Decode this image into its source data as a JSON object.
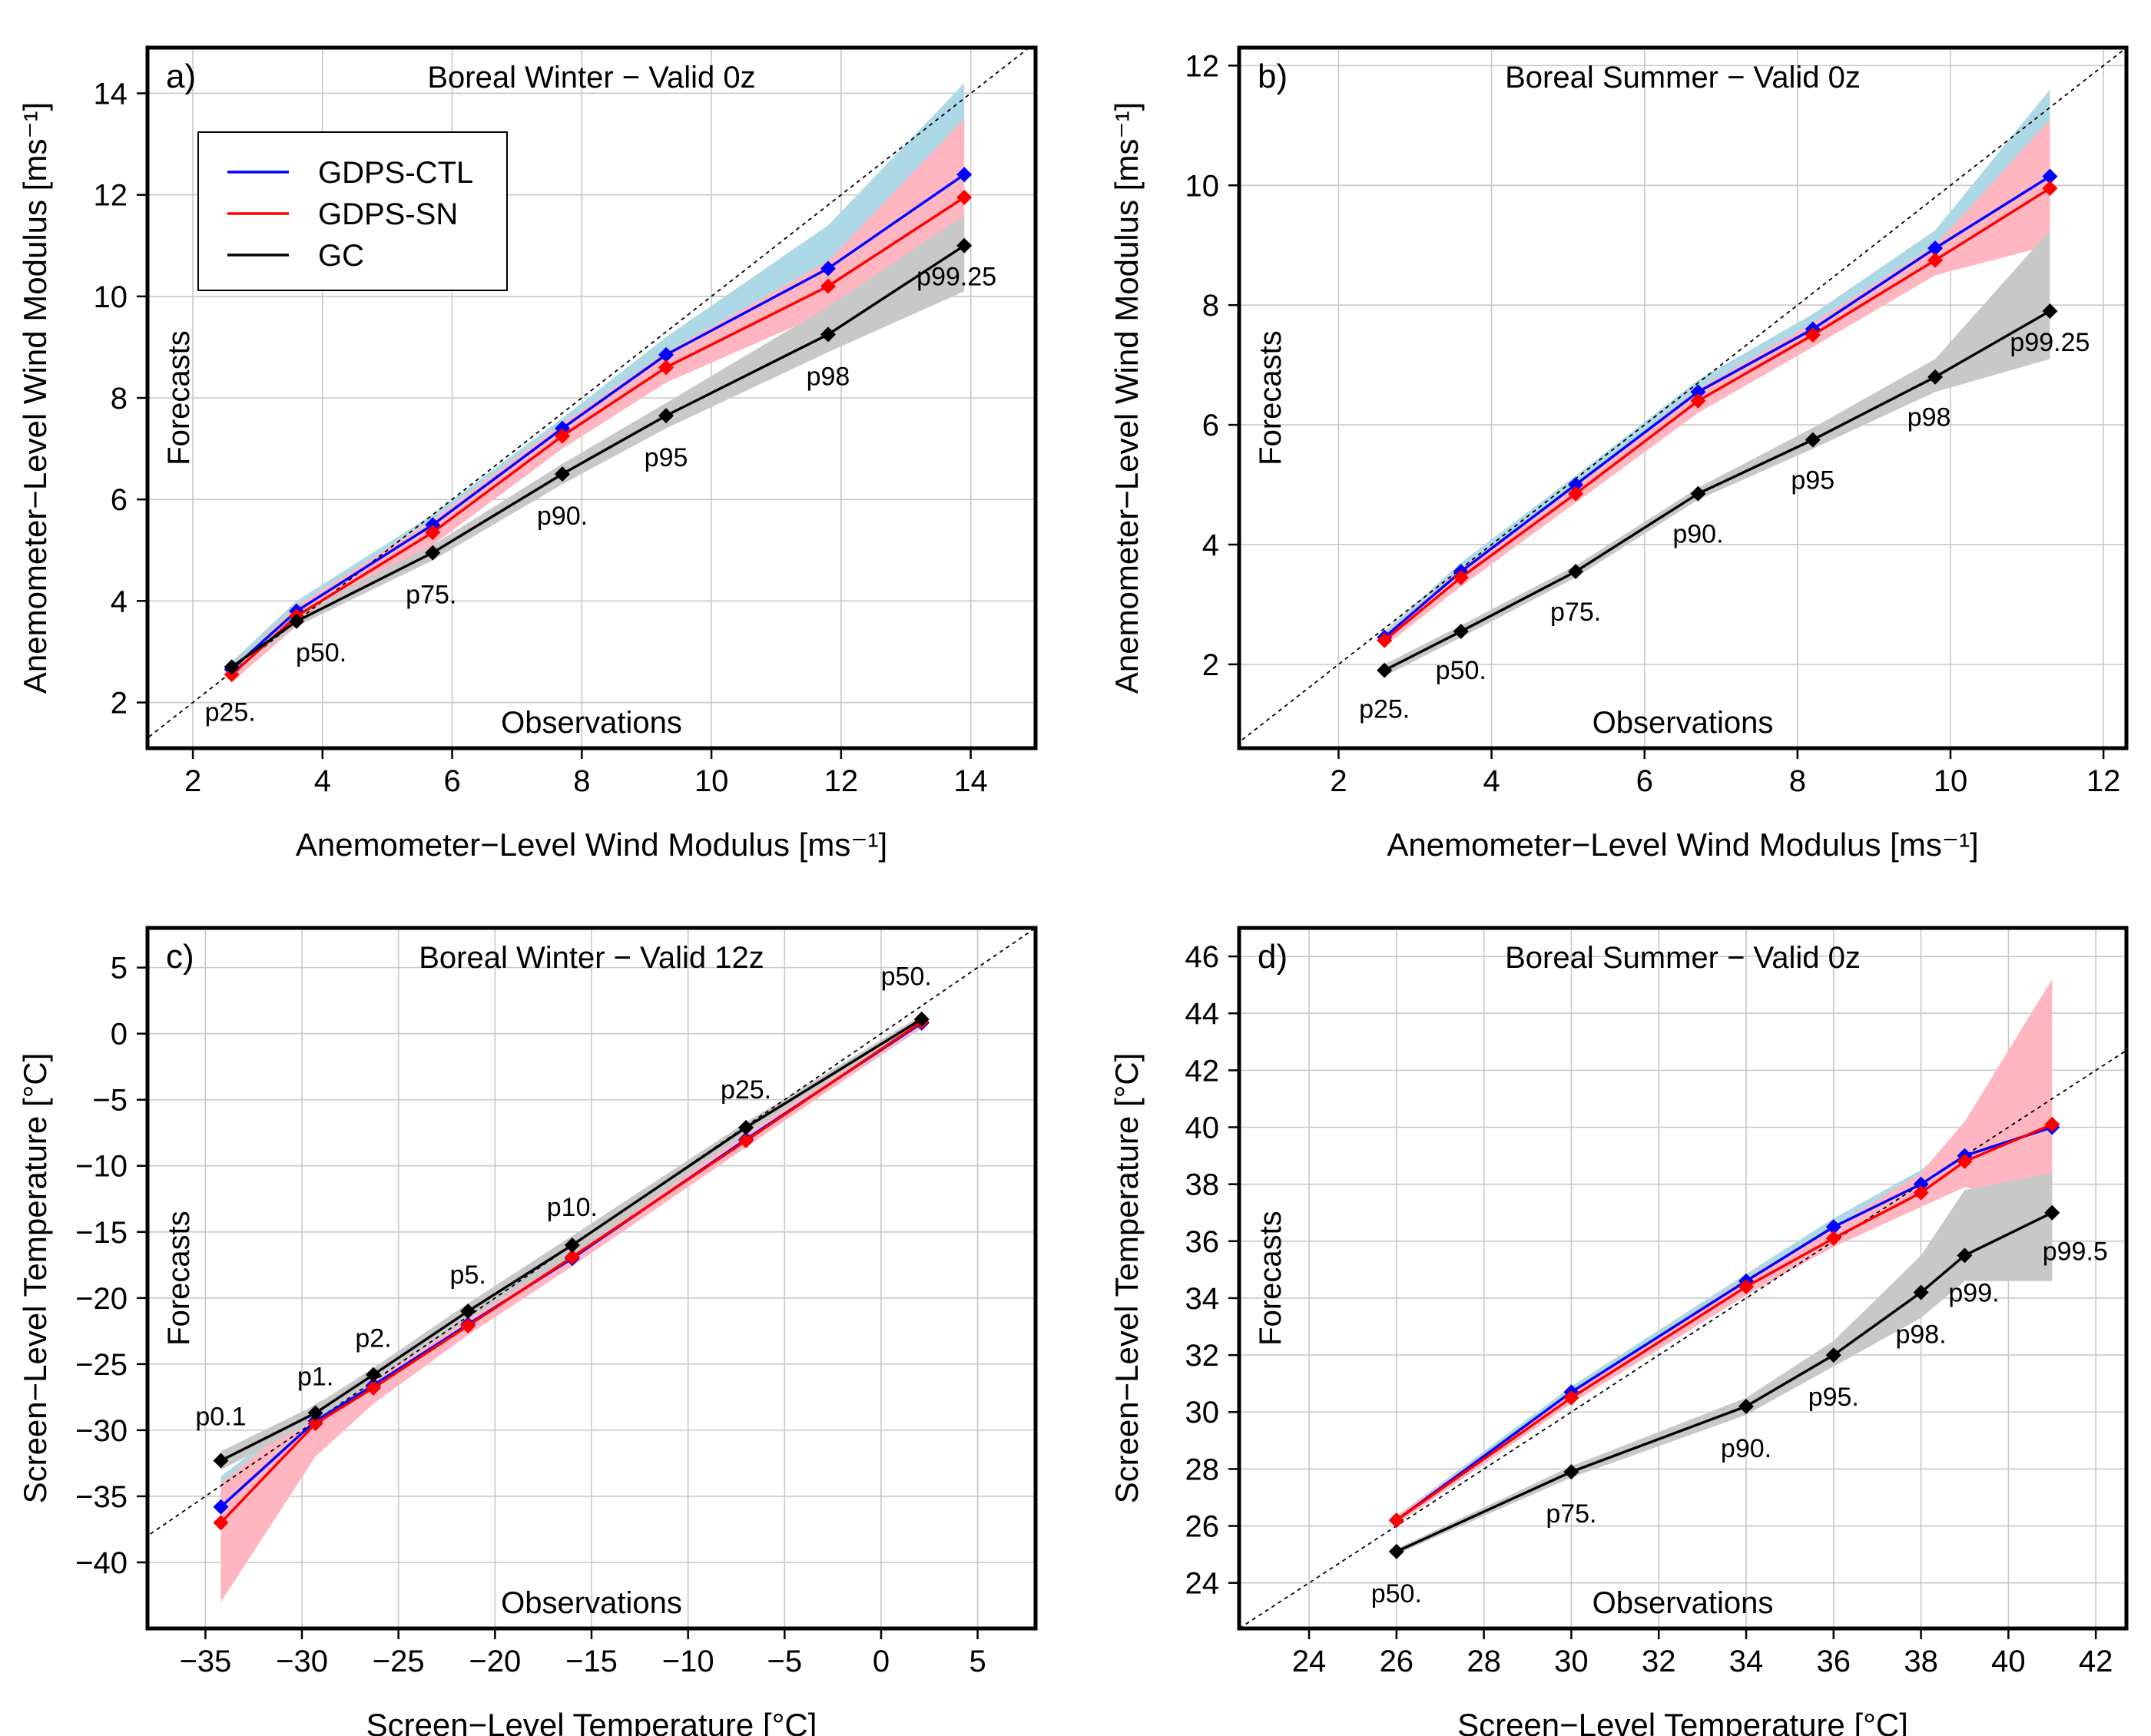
{
  "figure": {
    "series_colors": {
      "GDPS-CTL": "#0000ff",
      "GDPS-SN": "#ff0000",
      "GC": "#000000"
    },
    "band_colors": {
      "GDPS-CTL": "#add8e6",
      "GDPS-SN": "#ffb6c1",
      "GC": "#c8c8c8"
    },
    "legend": [
      "GDPS-CTL",
      "GDPS-SN",
      "GC"
    ]
  },
  "chart_data": [
    {
      "panel": "a)",
      "type": "line",
      "title": "Boreal Winter − Valid 0z",
      "xlabel": "Anemometer−Level Wind Modulus [ms⁻¹]",
      "ylabel": "Anemometer−Level Wind Modulus [ms⁻¹]",
      "inner_ylabel": "Forecasts",
      "inner_xlabel": "Observations",
      "xlim": [
        1.3,
        15.0
      ],
      "ylim": [
        1.1,
        14.9
      ],
      "xticks": [
        2,
        4,
        6,
        8,
        10,
        12,
        14
      ],
      "yticks": [
        2,
        4,
        6,
        8,
        10,
        12,
        14
      ],
      "legend": true,
      "x": [
        2.6,
        3.6,
        5.7,
        7.7,
        9.3,
        11.8,
        13.9
      ],
      "series": [
        {
          "name": "GDPS-CTL",
          "values": [
            2.65,
            3.8,
            5.5,
            7.4,
            8.85,
            10.55,
            12.4
          ],
          "band_low": [
            2.5,
            3.6,
            5.3,
            7.2,
            8.6,
            10.3,
            11.8
          ],
          "band_high": [
            2.8,
            4.0,
            5.7,
            7.6,
            9.2,
            11.4,
            14.2
          ]
        },
        {
          "name": "GDPS-SN",
          "values": [
            2.55,
            3.7,
            5.35,
            7.25,
            8.6,
            10.2,
            11.95
          ],
          "band_low": [
            2.4,
            3.5,
            5.1,
            7.0,
            8.3,
            9.7,
            10.5
          ],
          "band_high": [
            2.7,
            3.9,
            5.6,
            7.5,
            8.9,
            10.7,
            13.5
          ]
        },
        {
          "name": "GC",
          "values": [
            2.7,
            3.6,
            4.95,
            6.5,
            7.65,
            9.25,
            11.0
          ],
          "band_low": [
            2.6,
            3.5,
            4.8,
            6.3,
            7.4,
            8.9,
            10.1
          ],
          "band_high": [
            2.8,
            3.75,
            5.1,
            6.7,
            7.9,
            9.8,
            11.6
          ]
        }
      ],
      "labels": [
        "p25.",
        "p50.",
        "p75.",
        "p90.",
        "p95",
        "p98",
        "p99.25"
      ]
    },
    {
      "panel": "b)",
      "type": "line",
      "title": "Boreal Summer − Valid 0z",
      "xlabel": "Anemometer−Level Wind Modulus [ms⁻¹]",
      "ylabel": "Anemometer−Level Wind Modulus [ms⁻¹]",
      "inner_ylabel": "Forecasts",
      "inner_xlabel": "Observations",
      "xlim": [
        0.7,
        12.3
      ],
      "ylim": [
        0.6,
        12.3
      ],
      "xticks": [
        2,
        4,
        6,
        8,
        10,
        12
      ],
      "yticks": [
        2,
        4,
        6,
        8,
        10,
        12
      ],
      "legend": false,
      "x": [
        2.6,
        3.6,
        5.1,
        6.7,
        8.2,
        9.8,
        11.3
      ],
      "series": [
        {
          "name": "GDPS-CTL",
          "values": [
            2.45,
            3.55,
            5.0,
            6.55,
            7.6,
            8.95,
            10.15
          ],
          "band_low": [
            2.35,
            3.4,
            4.85,
            6.35,
            7.4,
            8.7,
            9.6
          ],
          "band_high": [
            2.55,
            3.7,
            5.15,
            6.75,
            7.85,
            9.25,
            11.6
          ]
        },
        {
          "name": "GDPS-SN",
          "values": [
            2.4,
            3.45,
            4.85,
            6.4,
            7.5,
            8.75,
            9.95
          ],
          "band_low": [
            2.3,
            3.3,
            4.7,
            6.2,
            7.3,
            8.5,
            9.0
          ],
          "band_high": [
            2.5,
            3.6,
            5.0,
            6.6,
            7.7,
            9.0,
            11.1
          ]
        },
        {
          "name": "GC",
          "values": [
            1.9,
            2.55,
            3.55,
            4.85,
            5.75,
            6.8,
            7.9
          ],
          "band_low": [
            1.8,
            2.45,
            3.45,
            4.75,
            5.6,
            6.55,
            7.1
          ],
          "band_high": [
            2.0,
            2.65,
            3.65,
            4.95,
            5.95,
            7.1,
            9.25
          ]
        }
      ],
      "labels": [
        "p25.",
        "p50.",
        "p75.",
        "p90.",
        "p95",
        "p98",
        "p99.25"
      ]
    },
    {
      "panel": "c)",
      "type": "line",
      "title": "Boreal Winter − Valid 12z",
      "xlabel": "Screen−Level Temperature [°C]",
      "ylabel": "Screen−Level Temperature [°C]",
      "inner_ylabel": "Forecasts",
      "inner_xlabel": "Observations",
      "xlim": [
        -38,
        8
      ],
      "ylim": [
        -45,
        8
      ],
      "xticks": [
        -35,
        -30,
        -25,
        -20,
        -15,
        -10,
        -5,
        0,
        5
      ],
      "yticks": [
        -40,
        -35,
        -30,
        -25,
        -20,
        -15,
        -10,
        -5,
        0,
        5
      ],
      "legend": false,
      "x": [
        -34.2,
        -29.3,
        -26.3,
        -21.4,
        -16.0,
        -7.0,
        2.1
      ],
      "series": [
        {
          "name": "GDPS-CTL",
          "values": [
            -35.8,
            -29.3,
            -26.6,
            -22.0,
            -17.0,
            -8.0,
            0.8
          ],
          "band_low": [
            -38.5,
            -31.5,
            -27.5,
            -22.6,
            -17.6,
            -8.5,
            0.4
          ],
          "band_high": [
            -33.5,
            -28.0,
            -25.8,
            -21.4,
            -16.4,
            -7.5,
            1.2
          ]
        },
        {
          "name": "GDPS-SN",
          "values": [
            -37.0,
            -29.5,
            -26.8,
            -22.1,
            -16.9,
            -8.1,
            0.9
          ],
          "band_low": [
            -43.0,
            -32.0,
            -28.0,
            -22.8,
            -17.6,
            -8.6,
            0.5
          ],
          "band_high": [
            -34.0,
            -28.2,
            -25.8,
            -21.4,
            -16.2,
            -7.6,
            1.3
          ]
        },
        {
          "name": "GC",
          "values": [
            -32.3,
            -28.7,
            -25.8,
            -21.0,
            -16.0,
            -7.1,
            1.1
          ],
          "band_low": [
            -33.0,
            -29.3,
            -26.3,
            -21.6,
            -16.8,
            -7.5,
            0.8
          ],
          "band_high": [
            -31.6,
            -28.1,
            -25.3,
            -20.4,
            -15.3,
            -6.7,
            1.4
          ]
        }
      ],
      "labels": [
        "p0.1",
        "p1.",
        "p2.",
        "p5.",
        "p10.",
        "p25.",
        "p50."
      ]
    },
    {
      "panel": "d)",
      "type": "line",
      "title": "Boreal Summer − Valid 0z",
      "xlabel": "Screen−Level Temperature [°C]",
      "ylabel": "Screen−Level Temperature [°C]",
      "inner_ylabel": "Forecasts",
      "inner_xlabel": "Observations",
      "xlim": [
        22.4,
        42.7
      ],
      "ylim": [
        22.4,
        47.0
      ],
      "xticks": [
        24,
        26,
        28,
        30,
        32,
        34,
        36,
        38,
        40,
        42
      ],
      "yticks": [
        24,
        26,
        28,
        30,
        32,
        34,
        36,
        38,
        40,
        42,
        44,
        46
      ],
      "legend": false,
      "x": [
        26.0,
        30.0,
        34.0,
        36.0,
        38.0,
        39.0,
        41.0
      ],
      "series": [
        {
          "name": "GDPS-CTL",
          "values": [
            26.2,
            30.7,
            34.6,
            36.5,
            38.0,
            39.0,
            40.0
          ],
          "band_low": [
            26.1,
            30.5,
            34.4,
            36.2,
            37.6,
            38.4,
            38.8
          ],
          "band_high": [
            26.35,
            30.9,
            34.85,
            36.8,
            38.5,
            39.7,
            41.5
          ]
        },
        {
          "name": "GDPS-SN",
          "values": [
            26.2,
            30.5,
            34.4,
            36.1,
            37.7,
            38.8,
            40.1
          ],
          "band_low": [
            26.05,
            30.3,
            34.1,
            35.8,
            37.2,
            37.9,
            37.3
          ],
          "band_high": [
            26.35,
            30.7,
            34.7,
            36.5,
            38.4,
            40.2,
            45.2
          ]
        },
        {
          "name": "GC",
          "values": [
            25.1,
            27.9,
            30.2,
            32.0,
            34.2,
            35.5,
            37.0
          ],
          "band_low": [
            25.0,
            27.7,
            29.9,
            31.6,
            33.3,
            34.6,
            34.6
          ],
          "band_high": [
            25.2,
            28.1,
            30.5,
            32.5,
            35.5,
            37.8,
            38.4
          ]
        }
      ],
      "labels": [
        "p50.",
        "p75.",
        "p90.",
        "p95.",
        "p98.",
        "p99.",
        "p99.5"
      ]
    }
  ]
}
